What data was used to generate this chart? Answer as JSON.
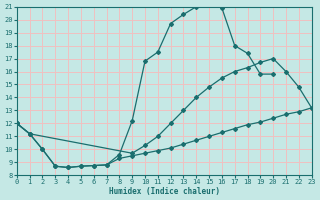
{
  "xlabel": "Humidex (Indice chaleur)",
  "bg_color": "#c5e8e5",
  "grid_color": "#f0c0c0",
  "line_color": "#1a6e6e",
  "xlim": [
    0,
    23
  ],
  "ylim": [
    8,
    21
  ],
  "xticks": [
    0,
    1,
    2,
    3,
    4,
    5,
    6,
    7,
    8,
    9,
    10,
    11,
    12,
    13,
    14,
    15,
    16,
    17,
    18,
    19,
    20,
    21,
    22,
    23
  ],
  "yticks": [
    8,
    9,
    10,
    11,
    12,
    13,
    14,
    15,
    16,
    17,
    18,
    19,
    20,
    21
  ],
  "line_top_x": [
    0,
    1,
    2,
    3,
    4,
    5,
    6,
    7,
    8,
    9,
    10,
    11,
    12,
    13,
    14,
    15,
    16,
    17,
    18,
    19,
    20,
    21,
    22,
    23
  ],
  "line_top_y": [
    12.0,
    11.2,
    10.0,
    8.7,
    8.6,
    8.7,
    8.75,
    8.8,
    9.6,
    12.2,
    16.8,
    17.5,
    19.7,
    20.4,
    21.0,
    21.2,
    20.9,
    18.0,
    17.4,
    15.8,
    15.8,
    null,
    null,
    null
  ],
  "line_mid_x": [
    0,
    1,
    9,
    10,
    11,
    12,
    13,
    14,
    15,
    16,
    17,
    18,
    19,
    20,
    21,
    22,
    23
  ],
  "line_mid_y": [
    12.0,
    11.2,
    9.7,
    10.3,
    11.0,
    12.0,
    13.0,
    14.0,
    14.8,
    15.5,
    16.0,
    16.3,
    16.7,
    17.0,
    16.0,
    14.8,
    13.2
  ],
  "line_bot_x": [
    0,
    1,
    2,
    3,
    4,
    5,
    6,
    7,
    8,
    9,
    10,
    11,
    12,
    13,
    14,
    15,
    16,
    17,
    18,
    19,
    20,
    21,
    22,
    23
  ],
  "line_bot_y": [
    12.0,
    11.2,
    10.0,
    8.7,
    8.6,
    8.7,
    8.75,
    8.8,
    9.3,
    9.5,
    9.7,
    9.9,
    10.1,
    10.4,
    10.7,
    11.0,
    11.3,
    11.6,
    11.9,
    12.1,
    12.4,
    12.7,
    12.9,
    13.2
  ]
}
